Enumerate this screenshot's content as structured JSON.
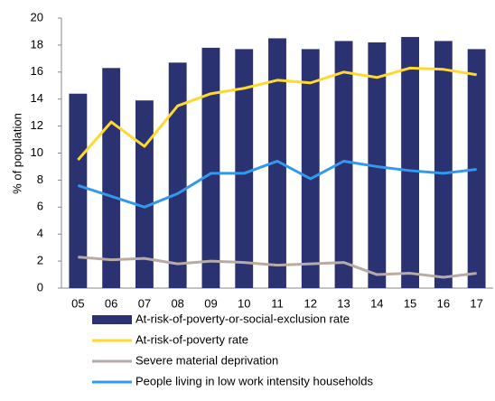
{
  "chart_data": {
    "type": "bar",
    "y_label": "% of population",
    "categories": [
      "05",
      "06",
      "07",
      "08",
      "09",
      "10",
      "11",
      "12",
      "13",
      "14",
      "15",
      "16",
      "17"
    ],
    "series": [
      {
        "name": "At-risk-of-poverty-or-social-exclusion rate",
        "type": "bar",
        "color": "#2b3272",
        "values": [
          14.4,
          16.3,
          13.9,
          16.7,
          17.8,
          17.7,
          18.5,
          17.7,
          18.3,
          18.2,
          18.6,
          18.3,
          17.7
        ]
      },
      {
        "name": "At-risk-of-poverty rate",
        "type": "line",
        "color": "#ffd92f",
        "values": [
          9.5,
          12.3,
          10.5,
          13.5,
          14.4,
          14.8,
          15.4,
          15.2,
          16.0,
          15.6,
          16.3,
          16.2,
          15.8
        ]
      },
      {
        "name": "Severe material deprivation",
        "type": "line",
        "color": "#b8aaa6",
        "values": [
          2.3,
          2.1,
          2.2,
          1.8,
          2.0,
          1.9,
          1.7,
          1.8,
          1.9,
          1.0,
          1.1,
          0.8,
          1.1
        ]
      },
      {
        "name": "People living in low work intensity households",
        "type": "line",
        "color": "#3399ee",
        "values": [
          7.6,
          6.8,
          6.0,
          7.0,
          8.5,
          8.5,
          9.4,
          8.1,
          9.4,
          9.0,
          8.7,
          8.5,
          8.8
        ]
      }
    ],
    "ylim": [
      0,
      20
    ],
    "yticks": [
      0,
      2,
      4,
      6,
      8,
      10,
      12,
      14,
      16,
      18,
      20
    ],
    "grid": false,
    "legend": "bottom"
  }
}
